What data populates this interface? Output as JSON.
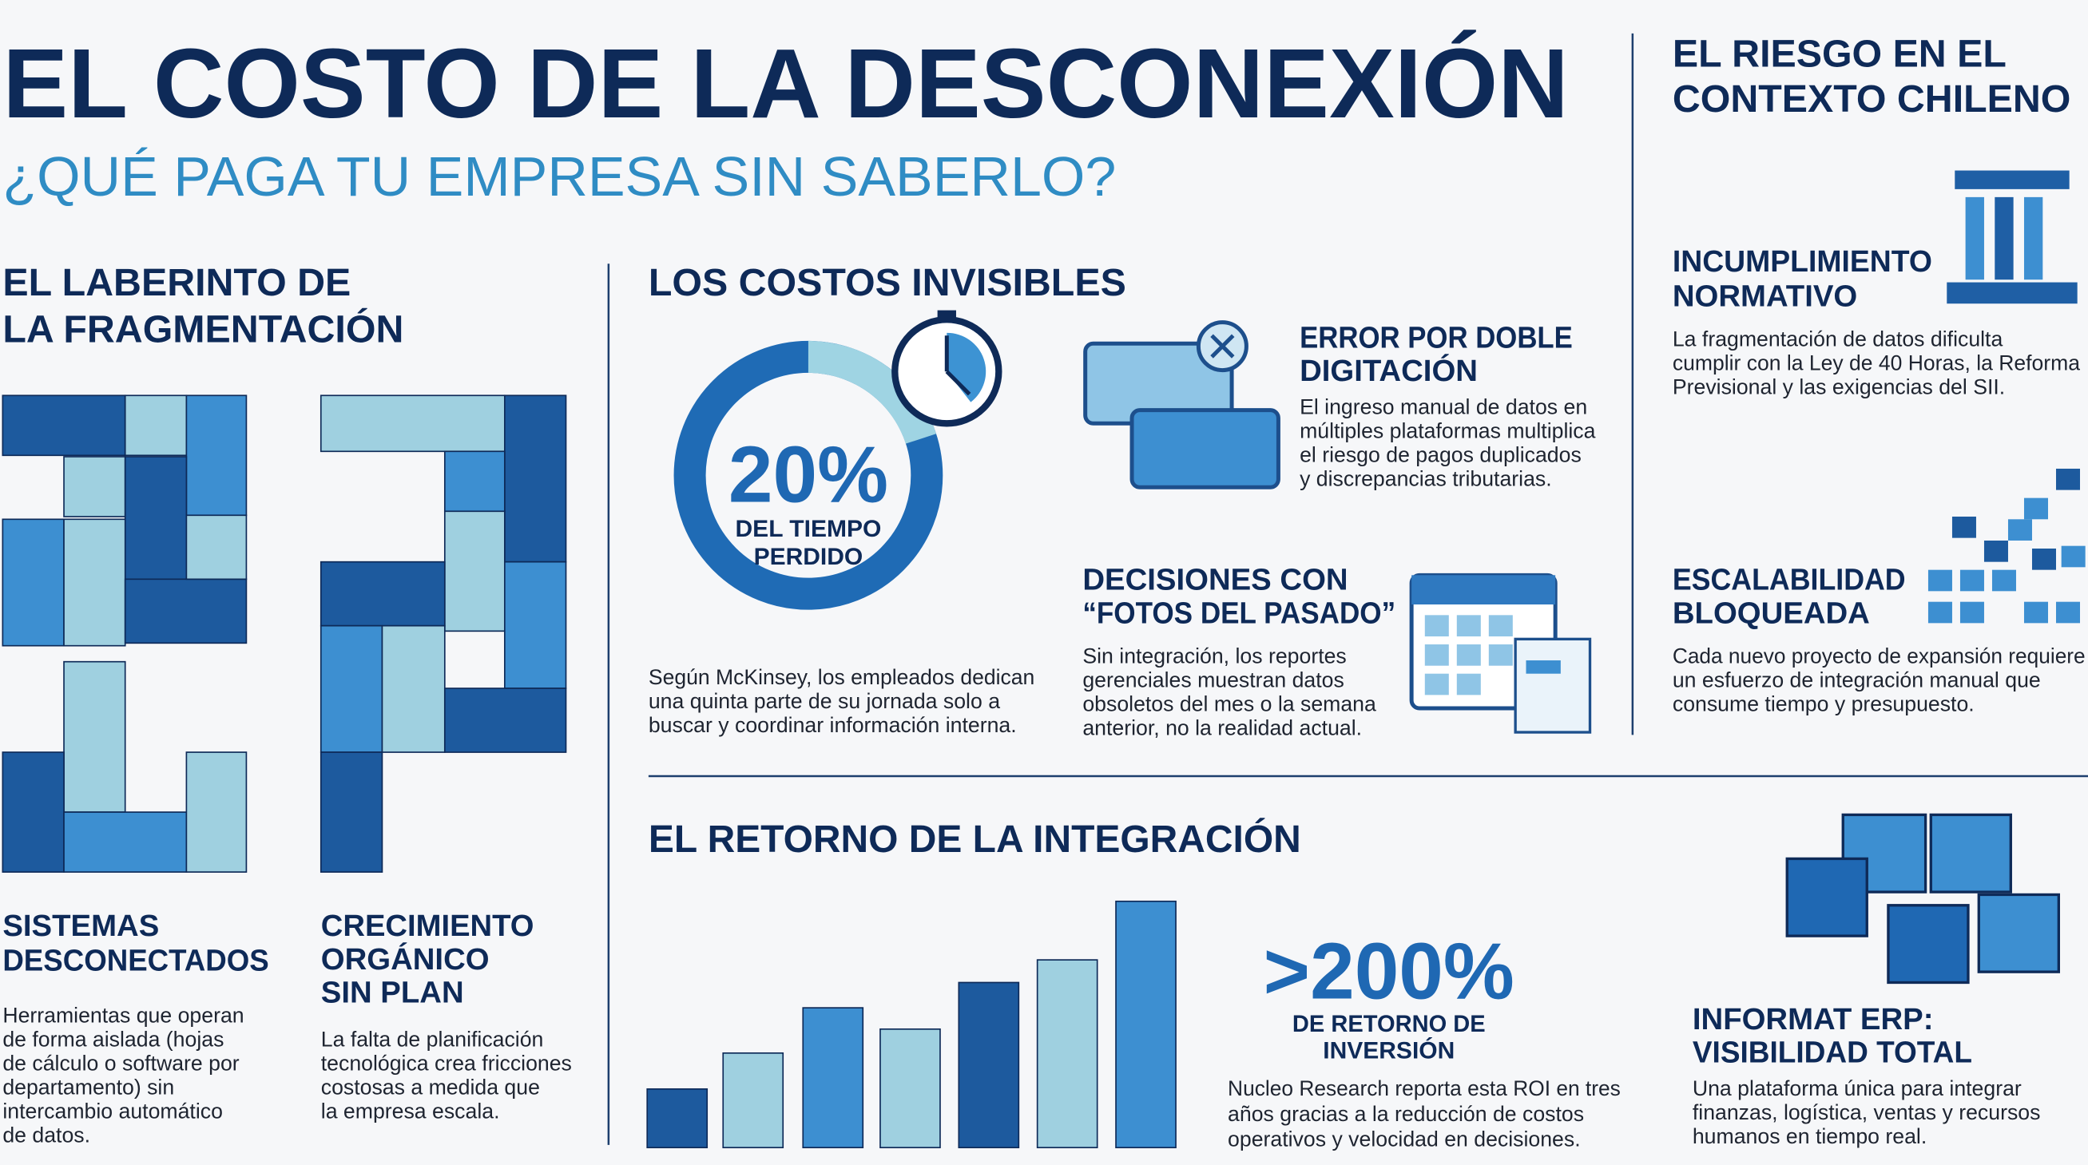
{
  "header": {
    "title": "EL COSTO DE LA DESCONEXIÓN",
    "subtitle": "¿QUÉ PAGA TU EMPRESA SIN SABERLO?"
  },
  "fragmentation": {
    "heading": [
      "EL LABERINTO DE",
      "LA FRAGMENTACIÓN"
    ],
    "items": [
      {
        "title": [
          "SISTEMAS",
          "DESCONECTADOS"
        ],
        "text": [
          "Herramientas que operan",
          "de forma aislada (hojas",
          "de cálculo o software por",
          "departamento) sin",
          "intercambio automático",
          "de datos."
        ]
      },
      {
        "title": [
          "CRECIMIENTO",
          "ORGÁNICO",
          "SIN PLAN"
        ],
        "text": [
          "La falta de planificación",
          "tecnológica crea fricciones",
          "costosas a medida que",
          "la empresa escala."
        ]
      }
    ]
  },
  "invisible_costs": {
    "heading": "LOS COSTOS INVISIBLES",
    "stat": {
      "value": "20%",
      "label": [
        "DEL TIEMPO",
        "PERDIDO"
      ]
    },
    "stat_text": [
      "Según McKinsey, los empleados dedican",
      "una quinta parte de su jornada solo a",
      "buscar y coordinar información interna."
    ],
    "items": [
      {
        "title": [
          "ERROR POR DOBLE",
          "DIGITACIÓN"
        ],
        "text": [
          "El ingreso manual de datos en",
          "múltiples plataformas multiplica",
          "el riesgo de pagos duplicados",
          "y discrepancias tributarias."
        ]
      },
      {
        "title": [
          "DECISIONES CON",
          "“FOTOS DEL PASADO”"
        ],
        "text": [
          "Sin integración, los reportes",
          "gerenciales muestran datos",
          "obsoletos del mes o la semana",
          "anterior, no la realidad actual."
        ]
      }
    ]
  },
  "chile": {
    "heading": [
      "EL RIESGO EN EL",
      "CONTEXTO CHILENO"
    ],
    "items": [
      {
        "title": [
          "INCUMPLIMIENTO",
          "NORMATIVO"
        ],
        "text": [
          "La fragmentación de datos dificulta",
          "cumplir con la Ley de 40 Horas, la Reforma",
          "Previsional y las exigencias del SII."
        ]
      },
      {
        "title": [
          "ESCALABILIDAD",
          "BLOQUEADA"
        ],
        "text": [
          "Cada nuevo proyecto de expansión requiere",
          "un esfuerzo de integración manual que",
          "consume tiempo y presupuesto."
        ]
      }
    ]
  },
  "return": {
    "heading": "EL RETORNO DE LA INTEGRACIÓN",
    "stat": {
      "value": ">200%",
      "label": [
        "DE RETORNO DE",
        "INVERSIÓN"
      ]
    },
    "stat_text": [
      "Nucleo Research reporta esta ROI en tres",
      "años gracias a la reducción de costos",
      "operativos y velocidad en decisiones."
    ],
    "product": {
      "title": [
        "INFORMAT ERP:",
        "VISIBILIDAD TOTAL"
      ],
      "text": [
        "Una plataforma única para integrar",
        "finanzas, logística, ventas y recursos",
        "humanos en tiempo real."
      ]
    }
  }
}
